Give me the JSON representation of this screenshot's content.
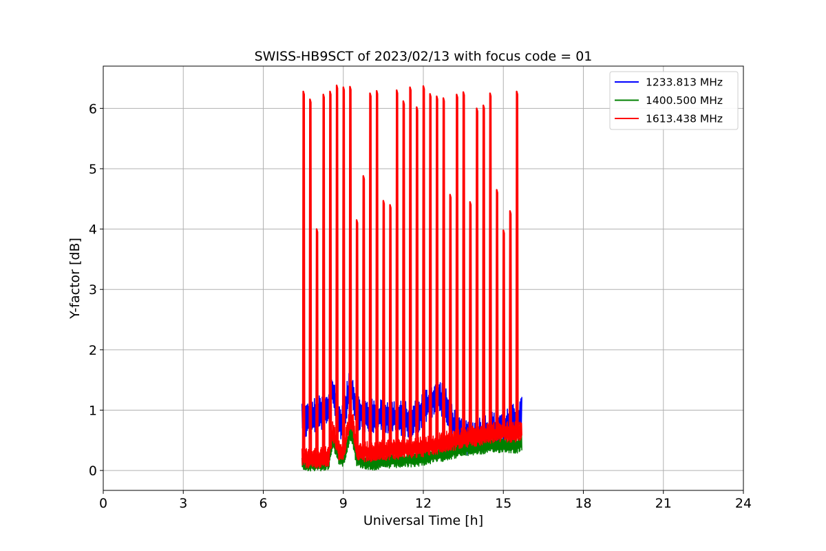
{
  "chart_data": {
    "type": "line",
    "title": "SWISS-HB9SCT of 2023/02/13 with focus code = 01",
    "xlabel": "Universal Time [h]",
    "ylabel": "Y-factor [dB]",
    "xlim": [
      0,
      24
    ],
    "ylim": [
      -0.33,
      6.7
    ],
    "xticks": [
      0,
      3,
      6,
      9,
      12,
      15,
      18,
      21,
      24
    ],
    "xtick_labels": [
      "0",
      "3",
      "6",
      "9",
      "12",
      "15",
      "18",
      "21",
      "24"
    ],
    "yticks": [
      0,
      1,
      2,
      3,
      4,
      5,
      6
    ],
    "ytick_labels": [
      "0",
      "1",
      "2",
      "3",
      "4",
      "5",
      "6"
    ],
    "grid": true,
    "legend_position": "top-right",
    "burst_times": [
      7.5,
      7.75,
      8.0,
      8.25,
      8.5,
      8.75,
      9.0,
      9.25,
      9.5,
      9.75,
      10.0,
      10.25,
      10.5,
      10.75,
      11.0,
      11.25,
      11.5,
      11.75,
      12.0,
      12.25,
      12.5,
      12.75,
      13.0,
      13.25,
      13.5,
      13.75,
      14.0,
      14.25,
      14.5,
      14.75,
      15.0,
      15.25,
      15.5
    ],
    "burst_peaks": [
      6.28,
      6.15,
      4.0,
      6.23,
      6.28,
      6.38,
      6.35,
      6.36,
      4.15,
      4.88,
      6.25,
      6.29,
      4.47,
      4.4,
      6.3,
      6.12,
      6.35,
      6.02,
      6.37,
      6.24,
      6.2,
      6.17,
      4.57,
      6.23,
      6.27,
      4.45,
      6.0,
      6.05,
      6.25,
      4.65,
      3.98,
      4.3,
      6.28
    ],
    "series": [
      {
        "name": "1233.813 MHz",
        "color": "#0000ff",
        "x": [
          7.45,
          7.6,
          8.0,
          8.4,
          8.6,
          8.75,
          8.85,
          9.0,
          9.25,
          9.35,
          9.5,
          10.0,
          10.5,
          11.0,
          11.5,
          11.75,
          12.0,
          12.25,
          12.5,
          12.75,
          13.0,
          13.25,
          13.5,
          14.0,
          14.5,
          15.0,
          15.5,
          15.7
        ],
        "y": [
          0.85,
          0.8,
          0.9,
          0.95,
          1.3,
          0.95,
          0.8,
          0.75,
          1.45,
          1.3,
          0.95,
          0.85,
          0.9,
          0.85,
          0.8,
          0.85,
          1.0,
          1.1,
          1.2,
          1.15,
          0.85,
          0.65,
          0.5,
          0.55,
          0.65,
          0.7,
          0.8,
          0.9
        ]
      },
      {
        "name": "1400.500 MHz",
        "color": "#008000",
        "x": [
          7.45,
          8.0,
          8.45,
          8.6,
          8.85,
          9.0,
          9.25,
          9.35,
          9.5,
          10.0,
          10.5,
          11.0,
          11.5,
          12.0,
          12.5,
          13.0,
          13.5,
          14.0,
          14.5,
          15.0,
          15.5,
          15.7
        ],
        "y": [
          0.12,
          0.1,
          0.12,
          0.5,
          0.2,
          0.18,
          0.6,
          0.55,
          0.18,
          0.12,
          0.14,
          0.16,
          0.17,
          0.2,
          0.25,
          0.3,
          0.35,
          0.38,
          0.4,
          0.42,
          0.4,
          0.45
        ]
      },
      {
        "name": "1613.438 MHz",
        "color": "#ff0000",
        "x": [
          7.45,
          8.0,
          8.45,
          8.6,
          8.85,
          9.0,
          9.25,
          9.35,
          9.5,
          10.0,
          10.5,
          11.0,
          11.5,
          12.0,
          12.5,
          13.0,
          13.5,
          14.0,
          14.5,
          15.0,
          15.5,
          15.7
        ],
        "y": [
          0.2,
          0.18,
          0.22,
          0.65,
          0.3,
          0.28,
          0.85,
          0.8,
          0.3,
          0.3,
          0.32,
          0.34,
          0.36,
          0.38,
          0.42,
          0.47,
          0.52,
          0.56,
          0.6,
          0.62,
          0.62,
          0.65
        ]
      }
    ]
  }
}
